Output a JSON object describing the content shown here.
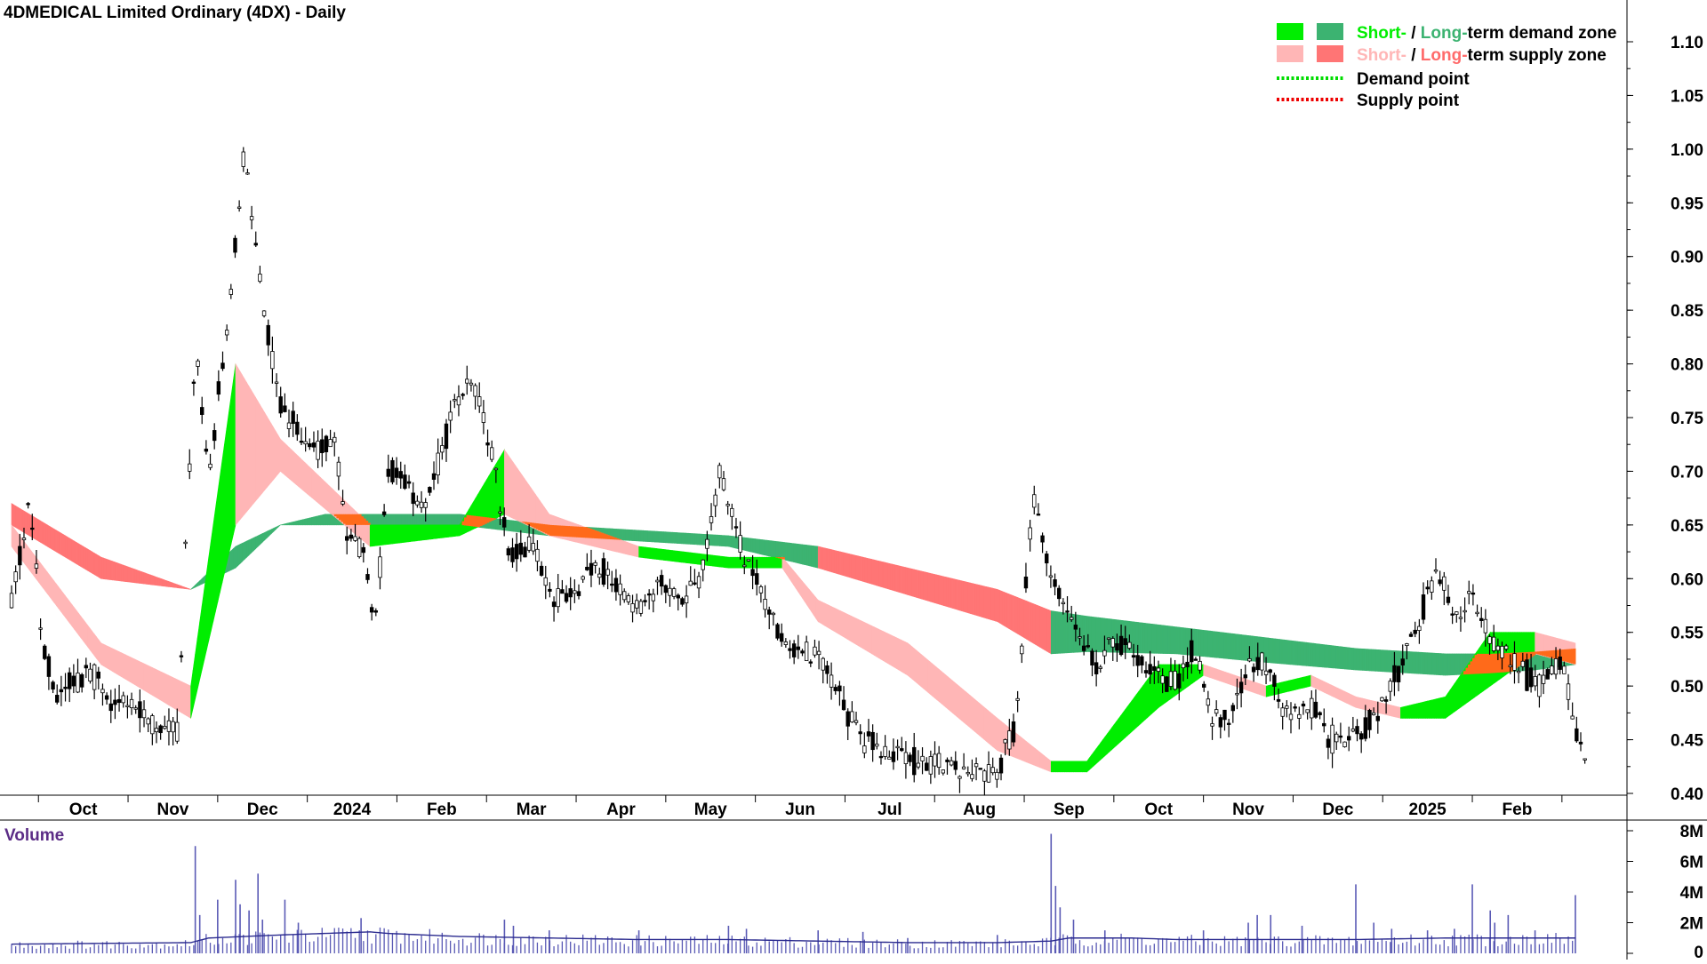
{
  "chart_data": [
    {
      "type": "candlestick",
      "title": "4DMEDICAL Limited Ordinary (4DX) - Daily",
      "x_tick_labels": [
        "Oct",
        "Nov",
        "Dec",
        "2024",
        "Feb",
        "Mar",
        "Apr",
        "May",
        "Jun",
        "Jul",
        "Aug",
        "Sep",
        "Oct",
        "Nov",
        "Dec",
        "2025",
        "Feb"
      ],
      "y_ticks": [
        "0.40",
        "0.45",
        "0.50",
        "0.55",
        "0.60",
        "0.65",
        "0.70",
        "0.75",
        "0.80",
        "0.85",
        "0.90",
        "0.95",
        "1.00",
        "1.05",
        "1.10"
      ],
      "ylim": [
        0.4,
        1.1
      ],
      "grid": false,
      "legend_position": "top-right",
      "legend": [
        {
          "parts": [
            {
              "text": "Short-",
              "color": "#00ee00"
            },
            {
              "text": " / ",
              "color": "#000000"
            },
            {
              "text": "Long-",
              "color": "#3cb371"
            },
            {
              "text": "term demand zone",
              "color": "#000000"
            }
          ],
          "swatches": [
            "#00ee00",
            "#3cb371"
          ],
          "kind": "swatch"
        },
        {
          "parts": [
            {
              "text": "Short-",
              "color": "#ffb6b6"
            },
            {
              "text": " / ",
              "color": "#000000"
            },
            {
              "text": "Long-",
              "color": "#ff6b6b"
            },
            {
              "text": "term supply zone",
              "color": "#000000"
            }
          ],
          "swatches": [
            "#ffb6b6",
            "#ff7575"
          ],
          "kind": "swatch"
        },
        {
          "parts": [
            {
              "text": "Demand point",
              "color": "#000000"
            }
          ],
          "line_color": "#00dd00",
          "kind": "dotted"
        },
        {
          "parts": [
            {
              "text": "Supply point",
              "color": "#000000"
            }
          ],
          "line_color": "#ee0000",
          "kind": "dotted"
        }
      ],
      "colors": {
        "short_demand": "#00ee00",
        "long_demand": "#3cb371",
        "short_supply": "#ffb6b6",
        "long_supply": "#ff7575",
        "overlap": "#ff6a1a",
        "candles": "#000000"
      },
      "month_starts": [
        0.3,
        1.3,
        2.3,
        3.3,
        4.3,
        5.3,
        6.3,
        7.3,
        8.3,
        9.3,
        10.3,
        11.3,
        12.3,
        13.3,
        14.3,
        15.3,
        16.3,
        17.3
      ],
      "note_x_axis": "x values are months counted from 1 Sep 2023",
      "price_anchors": {
        "x": [
          0.0,
          0.2,
          0.35,
          0.5,
          0.65,
          0.9,
          1.1,
          1.3,
          1.5,
          1.7,
          1.85,
          2.05,
          2.2,
          2.4,
          2.6,
          2.8,
          3.0,
          3.2,
          3.4,
          3.6,
          3.75,
          3.95,
          4.05,
          4.2,
          4.4,
          4.6,
          4.8,
          5.0,
          5.1,
          5.4,
          5.55,
          5.8,
          6.05,
          6.3,
          6.5,
          6.7,
          7.0,
          7.2,
          7.45,
          7.7,
          7.9,
          8.1,
          8.25,
          8.4,
          8.55,
          8.8,
          9.0,
          9.3,
          9.5,
          9.7,
          10.0,
          10.3,
          10.5,
          10.7,
          11.0,
          11.2,
          11.4,
          11.6,
          11.8,
          12.1,
          12.2,
          12.4,
          12.6,
          12.8,
          13.0,
          13.2,
          13.4,
          13.6,
          13.8,
          14.0,
          14.2,
          14.5,
          14.7,
          14.9,
          15.1,
          15.3,
          15.5,
          15.7,
          15.9,
          16.1,
          16.3,
          16.5,
          16.7,
          16.9,
          17.1,
          17.3,
          17.45,
          17.6
        ],
        "y": [
          0.58,
          0.67,
          0.54,
          0.49,
          0.5,
          0.51,
          0.48,
          0.49,
          0.47,
          0.46,
          0.46,
          0.82,
          0.7,
          0.83,
          1.0,
          0.86,
          0.76,
          0.74,
          0.72,
          0.73,
          0.64,
          0.62,
          0.55,
          0.7,
          0.69,
          0.66,
          0.72,
          0.77,
          0.8,
          0.7,
          0.62,
          0.63,
          0.58,
          0.59,
          0.61,
          0.6,
          0.57,
          0.6,
          0.58,
          0.6,
          0.7,
          0.64,
          0.61,
          0.58,
          0.55,
          0.53,
          0.53,
          0.48,
          0.45,
          0.44,
          0.43,
          0.43,
          0.42,
          0.42,
          0.42,
          0.46,
          0.68,
          0.6,
          0.57,
          0.52,
          0.53,
          0.54,
          0.52,
          0.51,
          0.5,
          0.54,
          0.47,
          0.47,
          0.52,
          0.52,
          0.47,
          0.48,
          0.45,
          0.45,
          0.46,
          0.48,
          0.52,
          0.56,
          0.61,
          0.56,
          0.59,
          0.54,
          0.53,
          0.51,
          0.5,
          0.53,
          0.45,
          0.44
        ]
      },
      "short_zone": {
        "x": [
          0.0,
          1.0,
          2.0,
          2.5,
          3.0,
          4.0,
          5.0,
          5.5,
          6.0,
          7.0,
          8.0,
          8.6,
          9.0,
          10.0,
          11.0,
          11.6,
          12.0,
          12.8,
          13.3,
          14.0,
          14.5,
          15.0,
          15.5,
          16.0,
          16.5,
          17.0,
          17.45
        ],
        "top": [
          0.65,
          0.54,
          0.5,
          0.8,
          0.73,
          0.65,
          0.65,
          0.72,
          0.66,
          0.63,
          0.62,
          0.62,
          0.58,
          0.54,
          0.47,
          0.43,
          0.43,
          0.52,
          0.52,
          0.5,
          0.51,
          0.49,
          0.48,
          0.49,
          0.55,
          0.55,
          0.54
        ],
        "bottom": [
          0.63,
          0.52,
          0.47,
          0.65,
          0.7,
          0.63,
          0.64,
          0.66,
          0.64,
          0.62,
          0.61,
          0.61,
          0.56,
          0.51,
          0.44,
          0.42,
          0.42,
          0.48,
          0.51,
          0.49,
          0.5,
          0.48,
          0.47,
          0.47,
          0.5,
          0.53,
          0.52
        ]
      },
      "long_zone": {
        "x": [
          0.0,
          1.0,
          2.0,
          2.5,
          3.0,
          3.5,
          4.0,
          5.0,
          6.0,
          7.0,
          8.0,
          9.0,
          10.0,
          11.0,
          11.6,
          12.0,
          13.0,
          14.0,
          15.0,
          16.0,
          16.5,
          17.0,
          17.45
        ],
        "top": [
          0.67,
          0.62,
          0.59,
          0.61,
          0.65,
          0.66,
          0.66,
          0.66,
          0.65,
          0.645,
          0.64,
          0.63,
          0.61,
          0.59,
          0.57,
          0.565,
          0.555,
          0.545,
          0.535,
          0.53,
          0.53,
          0.532,
          0.535
        ],
        "bottom": [
          0.65,
          0.6,
          0.59,
          0.63,
          0.65,
          0.65,
          0.65,
          0.65,
          0.64,
          0.635,
          0.63,
          0.61,
          0.585,
          0.56,
          0.53,
          0.532,
          0.53,
          0.522,
          0.515,
          0.51,
          0.512,
          0.515,
          0.52
        ]
      }
    },
    {
      "type": "bar",
      "title": "Volume",
      "y_ticks": [
        "0",
        "2M",
        "4M",
        "6M",
        "8M"
      ],
      "ylim": [
        0,
        8
      ],
      "units": "M",
      "spikes": {
        "x": [
          2.05,
          2.1,
          2.3,
          2.5,
          2.55,
          2.65,
          2.75,
          2.8,
          3.05,
          3.2,
          3.9,
          5.5,
          5.6,
          6.0,
          7.0,
          8.0,
          8.2,
          9.0,
          9.5,
          10.0,
          11.0,
          11.6,
          11.65,
          11.7,
          11.85,
          12.2,
          13.3,
          13.8,
          13.9,
          14.05,
          14.4,
          15.0,
          15.2,
          15.4,
          15.8,
          16.1,
          16.3,
          16.5,
          16.55,
          16.7,
          17.0,
          17.45
        ],
        "v": [
          7.0,
          2.5,
          3.5,
          4.8,
          3.2,
          2.8,
          5.2,
          2.2,
          3.5,
          2.0,
          2.3,
          2.2,
          1.8,
          1.5,
          1.5,
          1.8,
          1.6,
          1.5,
          1.4,
          1.0,
          1.2,
          7.8,
          4.4,
          3.0,
          2.2,
          1.5,
          1.5,
          2.0,
          2.5,
          2.5,
          1.8,
          4.5,
          2.0,
          1.6,
          1.5,
          1.6,
          4.5,
          2.8,
          2.0,
          2.5,
          1.5,
          3.8
        ]
      },
      "average": {
        "x": [
          0.0,
          2.0,
          2.2,
          3.0,
          4.0,
          4.2,
          5.0,
          6.0,
          7.0,
          8.0,
          9.0,
          10.0,
          11.0,
          11.6,
          11.8,
          12.5,
          13.0,
          14.0,
          15.0,
          16.0,
          17.0,
          17.45
        ],
        "v": [
          0.6,
          0.7,
          1.0,
          1.2,
          1.4,
          1.3,
          1.1,
          1.0,
          0.9,
          0.9,
          0.8,
          0.7,
          0.7,
          0.8,
          1.0,
          1.0,
          0.9,
          0.9,
          0.9,
          1.0,
          1.0,
          1.0
        ]
      }
    }
  ]
}
